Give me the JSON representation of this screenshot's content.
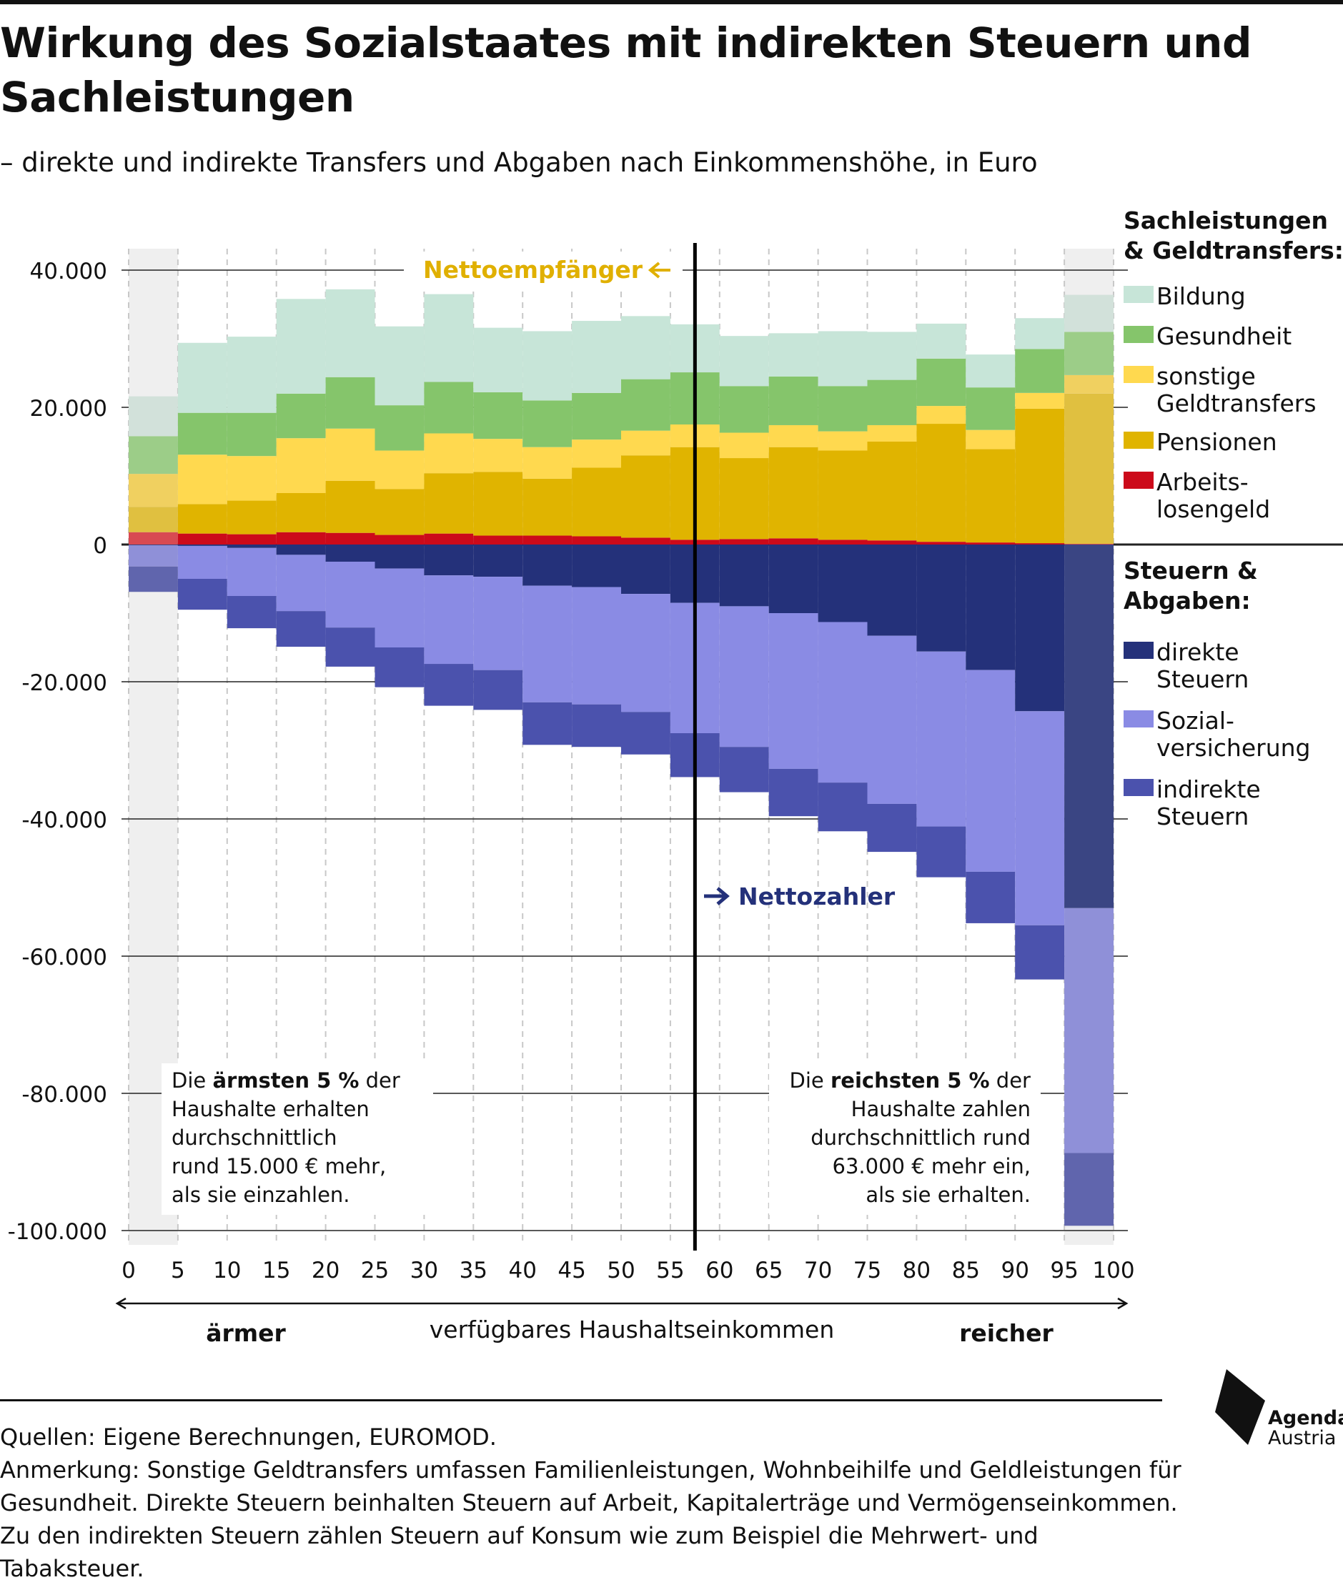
{
  "header": {
    "title": "Wirkung des Sozialstaates mit indirekten Steuern und Sachleistungen",
    "subtitle": "– direkte und indirekte Transfers und Abgaben nach Einkommenshöhe, in Euro"
  },
  "chart_data": {
    "type": "bar",
    "stacked": true,
    "x_ticks": [
      "0",
      "5",
      "10",
      "15",
      "20",
      "25",
      "30",
      "35",
      "40",
      "45",
      "50",
      "55",
      "60",
      "65",
      "70",
      "75",
      "80",
      "85",
      "90",
      "95",
      "100"
    ],
    "x_bins": [
      "0-5",
      "5-10",
      "10-15",
      "15-20",
      "20-25",
      "25-30",
      "30-35",
      "35-40",
      "40-45",
      "45-50",
      "50-55",
      "55-60",
      "60-65",
      "65-70",
      "70-75",
      "75-80",
      "80-85",
      "85-90",
      "90-95",
      "95-100"
    ],
    "y_ticks": [
      "40.000",
      "20.000",
      "0",
      "-20.000",
      "-40.000",
      "-60.000",
      "-80.000",
      "-100.000"
    ],
    "ylim": [
      -100000,
      40000
    ],
    "grid": true,
    "xlabel": "verfügbares Haushaltseinkommen",
    "x_left_label": "ärmer",
    "x_right_label": "reicher",
    "highlighted_bins": [
      "0-5",
      "95-100"
    ],
    "breakeven_line_x": 57.5,
    "legend_groups": [
      {
        "title_lines": [
          "Sachleistungen",
          "& Geldtransfers:"
        ],
        "items": [
          {
            "series": "Bildung",
            "lines": [
              "Bildung"
            ]
          },
          {
            "series": "Gesundheit",
            "lines": [
              "Gesundheit"
            ]
          },
          {
            "series": "sonstige Geldtransfers",
            "lines": [
              "sonstige",
              "Geldtransfers"
            ]
          },
          {
            "series": "Pensionen",
            "lines": [
              "Pensionen"
            ]
          },
          {
            "series": "Arbeitslosengeld",
            "lines": [
              "Arbeits-",
              "losengeld"
            ]
          }
        ]
      },
      {
        "title_lines": [
          "Steuern &",
          "Abgaben:"
        ],
        "items": [
          {
            "series": "direkte Steuern",
            "lines": [
              "direkte",
              "Steuern"
            ]
          },
          {
            "series": "Sozialversicherung",
            "lines": [
              "Sozial-",
              "versicherung"
            ]
          },
          {
            "series": "indirekte Steuern",
            "lines": [
              "indirekte",
              "Steuern"
            ]
          }
        ]
      }
    ],
    "series": [
      {
        "name": "Arbeitslosengeld",
        "group": "positive",
        "color": "#cc0a1a",
        "faded_color": "#d84a52",
        "values": [
          1800,
          1600,
          1500,
          1800,
          1700,
          1400,
          1600,
          1300,
          1300,
          1200,
          1000,
          700,
          800,
          900,
          700,
          600,
          400,
          300,
          200,
          100
        ]
      },
      {
        "name": "Pensionen",
        "group": "positive",
        "color": "#e0b400",
        "faded_color": "#e0c040",
        "values": [
          3700,
          4300,
          4900,
          5700,
          7600,
          6700,
          8800,
          9300,
          8300,
          10000,
          12000,
          13500,
          11800,
          13300,
          13000,
          14400,
          17200,
          13600,
          19600,
          21900
        ]
      },
      {
        "name": "sonstige Geldtransfers",
        "group": "positive",
        "color": "#ffd94f",
        "faded_color": "#f0d060",
        "values": [
          4800,
          7200,
          6500,
          8000,
          7600,
          5600,
          5800,
          4800,
          4600,
          4100,
          3600,
          3300,
          3700,
          3200,
          2800,
          2400,
          2600,
          2800,
          2300,
          2700
        ]
      },
      {
        "name": "Gesundheit",
        "group": "positive",
        "color": "#85c56b",
        "faded_color": "#9ccd88",
        "values": [
          5500,
          6100,
          6300,
          6500,
          7500,
          6600,
          7500,
          6800,
          6800,
          6800,
          7500,
          7600,
          6800,
          7100,
          6600,
          6600,
          6900,
          6200,
          6400,
          6300
        ]
      },
      {
        "name": "Bildung",
        "group": "positive",
        "color": "#c7e5d8",
        "faded_color": "#d2e1da",
        "values": [
          5800,
          10200,
          11100,
          13800,
          12800,
          11500,
          12800,
          9400,
          10100,
          10500,
          9200,
          7000,
          7300,
          6300,
          8000,
          7000,
          5100,
          4800,
          4500,
          5400
        ]
      },
      {
        "name": "direkte Steuern",
        "group": "negative",
        "color": "#24317a",
        "faded_color": "#3a4583",
        "values": [
          -100,
          -200,
          -500,
          -1500,
          -2500,
          -3500,
          -4500,
          -4700,
          -6000,
          -6200,
          -7200,
          -8500,
          -9000,
          -10000,
          -11300,
          -13300,
          -15600,
          -18300,
          -24300,
          -53000
        ]
      },
      {
        "name": "Sozialversicherung",
        "group": "negative",
        "color": "#8a8be4",
        "faded_color": "#8f90d8",
        "values": [
          -3100,
          -4800,
          -7000,
          -8200,
          -9600,
          -11500,
          -12900,
          -13600,
          -17000,
          -17100,
          -17200,
          -19000,
          -20500,
          -22700,
          -23400,
          -24500,
          -25500,
          -29400,
          -31200,
          -35700
        ]
      },
      {
        "name": "indirekte Steuern",
        "group": "negative",
        "color": "#4b52ad",
        "faded_color": "#6065ad",
        "values": [
          -3700,
          -4500,
          -4700,
          -5200,
          -5700,
          -5800,
          -6100,
          -5800,
          -6200,
          -6200,
          -6200,
          -6400,
          -6600,
          -6900,
          -7100,
          -7000,
          -7400,
          -7500,
          -7900,
          -10600
        ]
      }
    ],
    "annotations": {
      "nettoempfaenger": "Nettoempfänger",
      "nettozahler": "Nettozahler",
      "left_box_lines": [
        [
          {
            "t": "Die "
          },
          {
            "t": "ärmsten 5 %",
            "b": true
          },
          {
            "t": " der"
          }
        ],
        [
          {
            "t": "Haushalte erhalten"
          }
        ],
        [
          {
            "t": "durchschnittlich"
          }
        ],
        [
          {
            "t": "rund 15.000 € mehr,"
          }
        ],
        [
          {
            "t": "als sie einzahlen."
          }
        ]
      ],
      "right_box_lines": [
        [
          {
            "t": "Die "
          },
          {
            "t": "reichsten 5 %",
            "b": true
          },
          {
            "t": " der"
          }
        ],
        [
          {
            "t": "Haushalte zahlen"
          }
        ],
        [
          {
            "t": "durchschnittlich rund"
          }
        ],
        [
          {
            "t": "63.000 € mehr ein,"
          }
        ],
        [
          {
            "t": "als sie erhalten."
          }
        ]
      ]
    }
  },
  "footer": {
    "source": "Quellen: Eigene Berechnungen, EUROMOD.",
    "note": "Anmerkung: Sonstige Geldtransfers umfassen Familienleistungen, Wohnbeihilfe und Geldleistungen für Gesundheit. Direkte Steuern beinhalten Steuern auf Arbeit, Kapitalerträge und Vermögenseinkommen. Zu den indirekten Steuern zählen Steuern auf Konsum wie zum Beispiel die Mehrwert- und Tabaksteuer."
  },
  "logo": {
    "name": "Agenda",
    "sub": "Austria",
    "icon": "agenda-austria-logo-icon"
  },
  "colors": {
    "nettoempfaenger": "#e0b000",
    "nettozahler": "#24317a",
    "highlight_band": "#efefef",
    "grid": "#222222"
  }
}
